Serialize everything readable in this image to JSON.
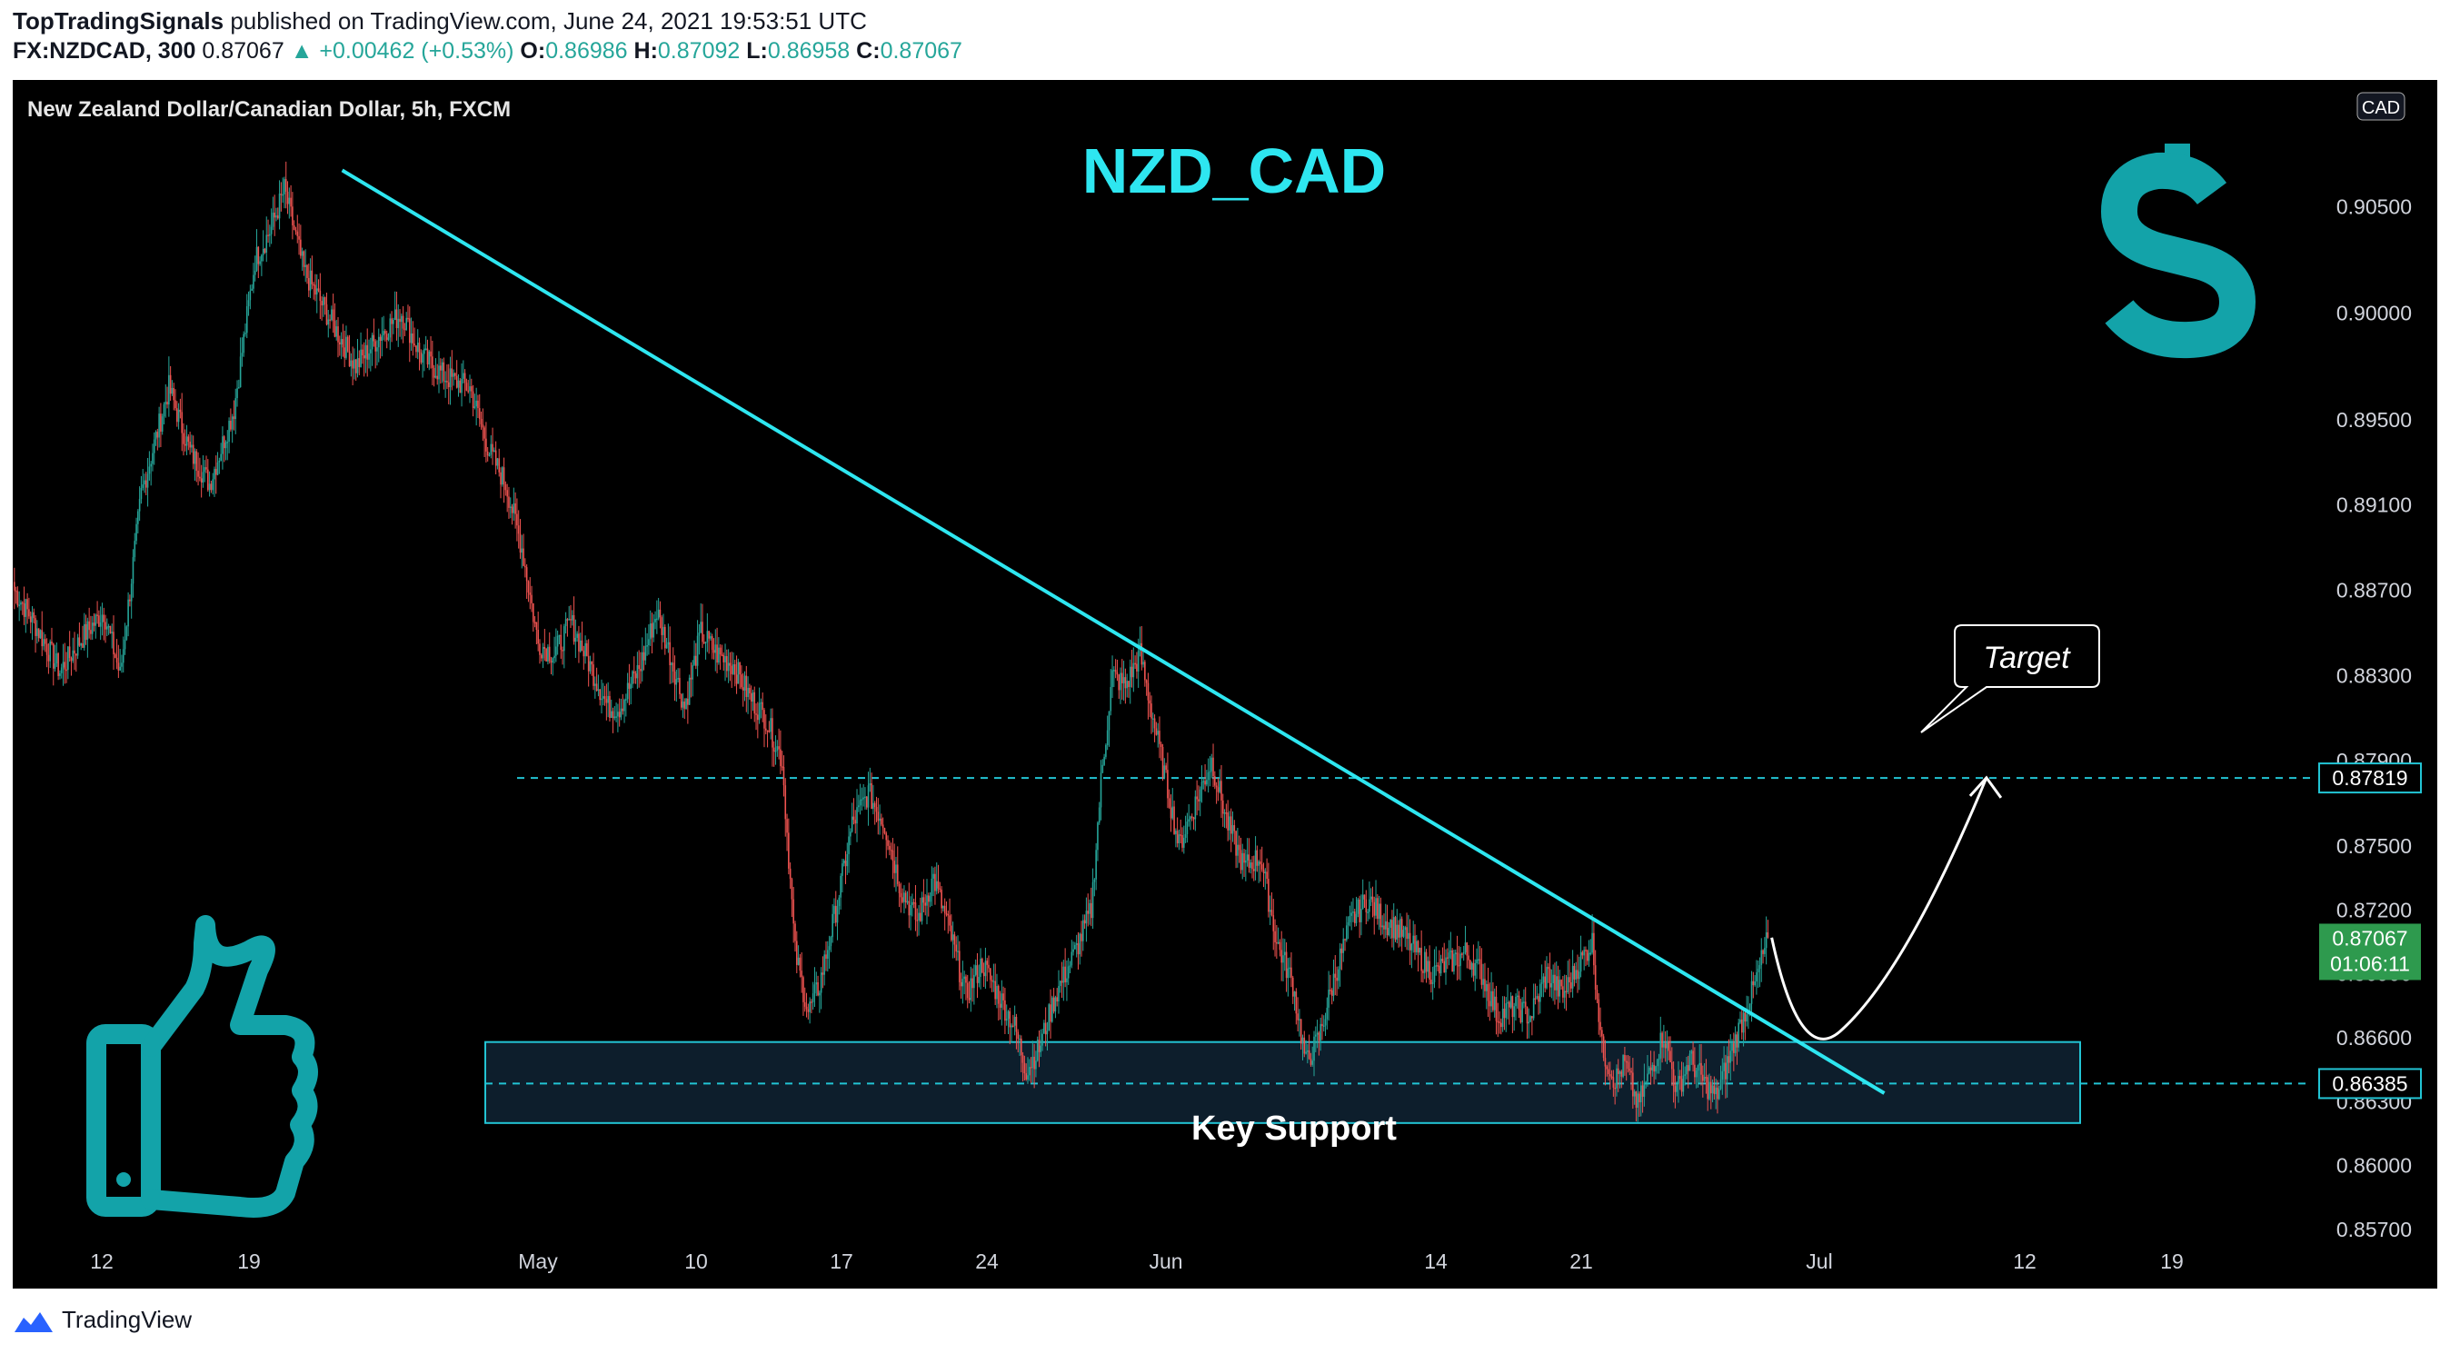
{
  "header": {
    "publisher": "TopTradingSignals",
    "published_text": "published on TradingView.com, June 24, 2021 19:53:51 UTC",
    "symbol": "FX:NZDCAD, 300",
    "last": "0.87067",
    "change": "▲ +0.00462 (+0.53%)",
    "o_label": "O:",
    "o": "0.86986",
    "h_label": "H:",
    "h": "0.87092",
    "l_label": "L:",
    "l": "0.86958",
    "c_label": "C:",
    "c": "0.87067"
  },
  "chart_data": {
    "type": "candlestick",
    "legend": "New Zealand Dollar/Canadian Dollar, 5h, FXCM",
    "title": "NZD_CAD",
    "currency": "CAD",
    "y_axis": {
      "ylim": [
        0.855,
        0.91
      ],
      "ticks": [
        "0.90500",
        "0.90000",
        "0.89500",
        "0.89100",
        "0.88700",
        "0.88300",
        "0.87900",
        "0.87500",
        "0.87200",
        "0.86900",
        "0.86600",
        "0.86300",
        "0.86000",
        "0.85700"
      ]
    },
    "x_axis": {
      "ticks": [
        "12",
        "19",
        "May",
        "10",
        "17",
        "24",
        "Jun",
        "14",
        "21",
        "Jul",
        "12",
        "19"
      ]
    },
    "price_path": [
      [
        0,
        0.887
      ],
      [
        12,
        0.8855
      ],
      [
        28,
        0.8832
      ],
      [
        42,
        0.8848
      ],
      [
        55,
        0.886
      ],
      [
        65,
        0.883
      ],
      [
        78,
        0.8915
      ],
      [
        95,
        0.8965
      ],
      [
        108,
        0.8935
      ],
      [
        120,
        0.892
      ],
      [
        135,
        0.8955
      ],
      [
        148,
        0.9025
      ],
      [
        158,
        0.904
      ],
      [
        166,
        0.9058
      ],
      [
        178,
        0.902
      ],
      [
        192,
        0.9
      ],
      [
        210,
        0.8975
      ],
      [
        225,
        0.899
      ],
      [
        238,
        0.9
      ],
      [
        250,
        0.898
      ],
      [
        265,
        0.897
      ],
      [
        280,
        0.8965
      ],
      [
        292,
        0.8935
      ],
      [
        302,
        0.892
      ],
      [
        312,
        0.889
      ],
      [
        322,
        0.8845
      ],
      [
        332,
        0.884
      ],
      [
        342,
        0.8855
      ],
      [
        352,
        0.8838
      ],
      [
        365,
        0.8815
      ],
      [
        372,
        0.8815
      ],
      [
        385,
        0.8835
      ],
      [
        395,
        0.886
      ],
      [
        403,
        0.884
      ],
      [
        412,
        0.8815
      ],
      [
        422,
        0.885
      ],
      [
        432,
        0.884
      ],
      [
        442,
        0.8835
      ],
      [
        452,
        0.882
      ],
      [
        462,
        0.881
      ],
      [
        472,
        0.879
      ],
      [
        480,
        0.87
      ],
      [
        488,
        0.8672
      ],
      [
        495,
        0.8685
      ],
      [
        505,
        0.872
      ],
      [
        515,
        0.876
      ],
      [
        525,
        0.8775
      ],
      [
        535,
        0.876
      ],
      [
        545,
        0.873
      ],
      [
        555,
        0.8715
      ],
      [
        565,
        0.8735
      ],
      [
        575,
        0.871
      ],
      [
        585,
        0.868
      ],
      [
        595,
        0.8695
      ],
      [
        605,
        0.868
      ],
      [
        615,
        0.8665
      ],
      [
        622,
        0.8645
      ],
      [
        630,
        0.8655
      ],
      [
        640,
        0.868
      ],
      [
        652,
        0.87
      ],
      [
        662,
        0.872
      ],
      [
        668,
        0.878
      ],
      [
        675,
        0.883
      ],
      [
        683,
        0.8825
      ],
      [
        692,
        0.884
      ],
      [
        700,
        0.881
      ],
      [
        708,
        0.878
      ],
      [
        716,
        0.875
      ],
      [
        726,
        0.877
      ],
      [
        736,
        0.879
      ],
      [
        746,
        0.876
      ],
      [
        756,
        0.874
      ],
      [
        766,
        0.8745
      ],
      [
        776,
        0.8705
      ],
      [
        786,
        0.8685
      ],
      [
        794,
        0.8648
      ],
      [
        802,
        0.866
      ],
      [
        812,
        0.869
      ],
      [
        822,
        0.8715
      ],
      [
        832,
        0.8725
      ],
      [
        842,
        0.8715
      ],
      [
        852,
        0.871
      ],
      [
        862,
        0.87
      ],
      [
        872,
        0.869
      ],
      [
        882,
        0.8695
      ],
      [
        892,
        0.87
      ],
      [
        902,
        0.869
      ],
      [
        912,
        0.867
      ],
      [
        922,
        0.8675
      ],
      [
        932,
        0.867
      ],
      [
        942,
        0.869
      ],
      [
        952,
        0.868
      ],
      [
        962,
        0.8695
      ],
      [
        970,
        0.8705
      ],
      [
        976,
        0.8655
      ],
      [
        984,
        0.864
      ],
      [
        990,
        0.8648
      ],
      [
        998,
        0.8628
      ],
      [
        1006,
        0.8645
      ],
      [
        1014,
        0.8662
      ],
      [
        1022,
        0.8635
      ],
      [
        1030,
        0.865
      ],
      [
        1038,
        0.864
      ],
      [
        1046,
        0.8632
      ],
      [
        1054,
        0.865
      ],
      [
        1062,
        0.8668
      ],
      [
        1070,
        0.8685
      ],
      [
        1078,
        0.8707
      ]
    ],
    "trendline": {
      "label": "descending trendline",
      "from": [
        202,
        0.9067
      ],
      "to": [
        1150,
        0.8634
      ]
    },
    "resistance_level": "0.87819",
    "support_level": "0.86385",
    "current_price": "0.87067",
    "countdown": "01:06:11",
    "support_zone": {
      "label": "Key Support",
      "top": 0.8658,
      "bottom": 0.862
    },
    "target_label": "Target",
    "projection": [
      [
        1078,
        0.8707
      ],
      [
        1095,
        0.8672
      ],
      [
        1120,
        0.8663
      ],
      [
        1160,
        0.869
      ],
      [
        1210,
        0.8782
      ]
    ],
    "colors": {
      "up": "#26a69a",
      "down": "#ef5350",
      "trend": "#2ee6f0",
      "zone": "#22c4d4",
      "title": "#2ee6f0",
      "icon": "#13a3a9"
    }
  },
  "footer": {
    "brand": "TradingView"
  }
}
